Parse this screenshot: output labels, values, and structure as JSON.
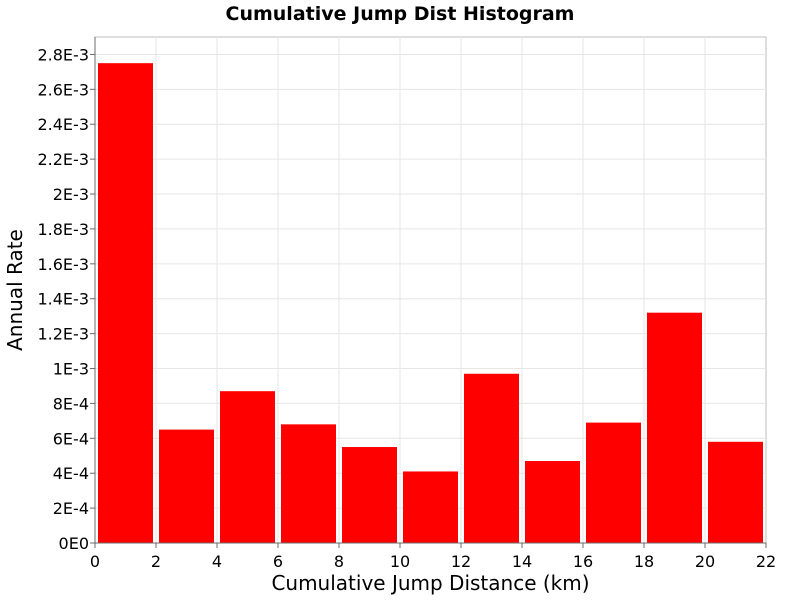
{
  "chart_data": {
    "type": "bar",
    "title": "Cumulative Jump Dist Histogram",
    "xlabel": "Cumulative Jump Distance (km)",
    "ylabel": "Annual Rate",
    "xlim": [
      0,
      22
    ],
    "ylim": [
      0,
      0.0029
    ],
    "grid": true,
    "bar_color": "#ff0000",
    "bins": [
      {
        "x0": 0,
        "x1": 2,
        "value": 0.00275
      },
      {
        "x0": 2,
        "x1": 4,
        "value": 0.00065
      },
      {
        "x0": 4,
        "x1": 6,
        "value": 0.00087
      },
      {
        "x0": 6,
        "x1": 8,
        "value": 0.00068
      },
      {
        "x0": 8,
        "x1": 10,
        "value": 0.00055
      },
      {
        "x0": 10,
        "x1": 12,
        "value": 0.00041
      },
      {
        "x0": 12,
        "x1": 14,
        "value": 0.00097
      },
      {
        "x0": 14,
        "x1": 16,
        "value": 0.00047
      },
      {
        "x0": 16,
        "x1": 18,
        "value": 0.00069
      },
      {
        "x0": 18,
        "x1": 20,
        "value": 0.00132
      },
      {
        "x0": 20,
        "x1": 22,
        "value": 0.00058
      }
    ],
    "x_ticks": [
      {
        "value": 0,
        "label": "0"
      },
      {
        "value": 2,
        "label": "2"
      },
      {
        "value": 4,
        "label": "4"
      },
      {
        "value": 6,
        "label": "6"
      },
      {
        "value": 8,
        "label": "8"
      },
      {
        "value": 10,
        "label": "10"
      },
      {
        "value": 12,
        "label": "12"
      },
      {
        "value": 14,
        "label": "14"
      },
      {
        "value": 16,
        "label": "16"
      },
      {
        "value": 18,
        "label": "18"
      },
      {
        "value": 20,
        "label": "20"
      },
      {
        "value": 22,
        "label": "22"
      }
    ],
    "y_ticks": [
      {
        "value": 0,
        "label": "0E0"
      },
      {
        "value": 0.0002,
        "label": "2E-4"
      },
      {
        "value": 0.0004,
        "label": "4E-4"
      },
      {
        "value": 0.0006,
        "label": "6E-4"
      },
      {
        "value": 0.0008,
        "label": "8E-4"
      },
      {
        "value": 0.001,
        "label": "1E-3"
      },
      {
        "value": 0.0012,
        "label": "1.2E-3"
      },
      {
        "value": 0.0014,
        "label": "1.4E-3"
      },
      {
        "value": 0.0016,
        "label": "1.6E-3"
      },
      {
        "value": 0.0018,
        "label": "1.8E-3"
      },
      {
        "value": 0.002,
        "label": "2E-3"
      },
      {
        "value": 0.0022,
        "label": "2.2E-3"
      },
      {
        "value": 0.0024,
        "label": "2.4E-3"
      },
      {
        "value": 0.0026,
        "label": "2.6E-3"
      },
      {
        "value": 0.0028,
        "label": "2.8E-3"
      }
    ]
  }
}
